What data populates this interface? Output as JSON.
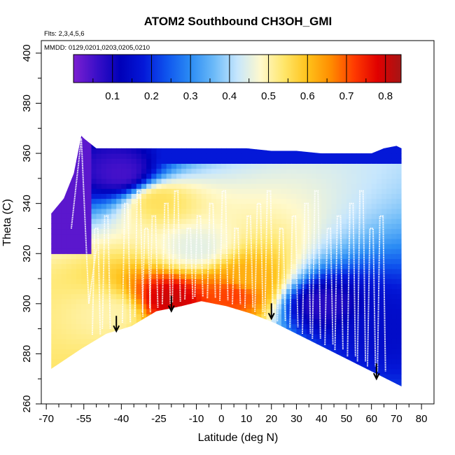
{
  "chart_data": {
    "type": "heatmap",
    "title": "ATOM2 Southbound CH3OH_GMI",
    "flights_label": "Flts: 2,3,4,5,6",
    "dates_label": "MMDD: 0129,0201,0203,0205,0210",
    "xlabel": "Latitude (deg N)",
    "ylabel": "Theta (C)",
    "xlim": [
      -72,
      85
    ],
    "ylim": [
      260,
      405
    ],
    "x_ticks": [
      -70,
      -55,
      -40,
      -25,
      -10,
      0,
      10,
      20,
      30,
      40,
      50,
      60,
      70,
      80
    ],
    "x_ticks_minor": [
      -65,
      -60,
      -50,
      -45,
      -35,
      -30,
      -20,
      -15,
      -5,
      5,
      15,
      25,
      35,
      45,
      55,
      65,
      75
    ],
    "y_ticks": [
      260,
      280,
      300,
      320,
      340,
      360,
      380,
      400
    ],
    "colorbar": {
      "range": [
        0.0,
        0.84
      ],
      "ticks": [
        0.1,
        0.2,
        0.3,
        0.4,
        0.5,
        0.6,
        0.7,
        0.8
      ],
      "colors": [
        "#7c1fd1",
        "#3a0fc8",
        "#0000b8",
        "#0418d8",
        "#0f55ee",
        "#2b8cf4",
        "#6cbaf8",
        "#c6e6fd",
        "#fff9cc",
        "#ffe66a",
        "#ffc21a",
        "#ff8c00",
        "#ff3a00",
        "#e00000",
        "#a51515"
      ]
    },
    "surface": {
      "lat": [
        -68,
        -56,
        -46,
        -36,
        -26,
        -16,
        -8,
        2,
        12,
        22,
        32,
        42,
        52,
        62,
        72
      ],
      "theta": [
        274,
        282,
        288,
        291,
        297,
        299,
        301,
        299,
        296,
        292,
        287,
        282,
        277,
        272,
        267
      ]
    },
    "top": {
      "lat": [
        -68,
        -63,
        -59,
        -56,
        -55,
        -50,
        -45,
        -30,
        -20,
        -10,
        10,
        20,
        30,
        40,
        50,
        60,
        65,
        70,
        72
      ],
      "theta": [
        336,
        342,
        352,
        367,
        366,
        362,
        362,
        362,
        362,
        362,
        362,
        361,
        361,
        360,
        360,
        360,
        362,
        363,
        362
      ]
    },
    "arrows": {
      "lat": [
        -42,
        -20,
        20,
        62
      ],
      "theta": [
        289,
        297,
        294,
        270
      ]
    },
    "field_centers": [
      {
        "lat": -40,
        "theta": 352,
        "value": 0.05
      },
      {
        "lat": -25,
        "theta": 341,
        "value": 0.55
      },
      {
        "lat": -10,
        "theta": 322,
        "value": 0.45
      },
      {
        "lat": -20,
        "theta": 302,
        "value": 0.8
      },
      {
        "lat": 5,
        "theta": 304,
        "value": 0.72
      },
      {
        "lat": 10,
        "theta": 310,
        "value": 0.62
      },
      {
        "lat": -44,
        "theta": 296,
        "value": 0.5
      },
      {
        "lat": 40,
        "theta": 300,
        "value": 0.08
      },
      {
        "lat": 65,
        "theta": 290,
        "value": 0.15
      }
    ]
  }
}
